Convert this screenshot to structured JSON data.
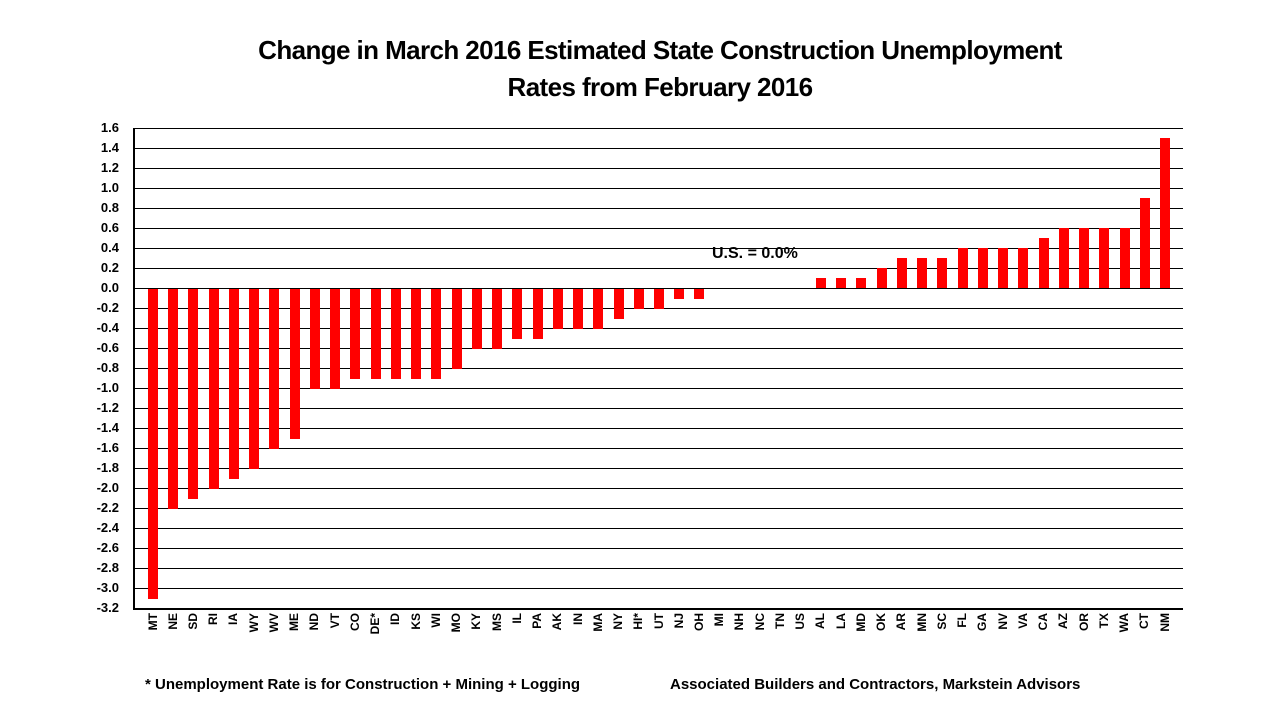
{
  "title": {
    "line1": "Change in March 2016 Estimated State Construction Unemployment",
    "line2": "Rates from February 2016"
  },
  "annotation": {
    "text": "U.S. = 0.0%"
  },
  "footer": {
    "left": "* Unemployment Rate is for Construction + Mining + Logging",
    "right": "Associated Builders and Contractors, Markstein Advisors"
  },
  "colors": {
    "bar": "#FF0000",
    "grid": "#000000",
    "text": "#000000",
    "background": "#FFFFFF"
  },
  "chart_data": {
    "type": "bar",
    "title": "Change in March 2016 Estimated State Construction Unemployment Rates from February 2016",
    "xlabel": "",
    "ylabel": "",
    "ylim": [
      -3.2,
      1.6
    ],
    "ytick_step": 0.2,
    "grid": true,
    "legend": "none",
    "bar_color": "#FF0000",
    "yticks": [
      "1.6",
      "1.4",
      "1.2",
      "1.0",
      "0.8",
      "0.6",
      "0.4",
      "0.2",
      "0.0",
      "-0.2",
      "-0.4",
      "-0.6",
      "-0.8",
      "-1.0",
      "-1.2",
      "-1.4",
      "-1.6",
      "-1.8",
      "-2.0",
      "-2.2",
      "-2.4",
      "-2.6",
      "-2.8",
      "-3.0",
      "-3.2"
    ],
    "categories": [
      "MT",
      "NE",
      "SD",
      "RI",
      "IA",
      "WY",
      "WV",
      "ME",
      "ND",
      "VT",
      "CO",
      "DE*",
      "ID",
      "KS",
      "WI",
      "MO",
      "KY",
      "MS",
      "IL",
      "PA",
      "AK",
      "IN",
      "MA",
      "NY",
      "HI*",
      "UT",
      "NJ",
      "OH",
      "MI",
      "NH",
      "NC",
      "TN",
      "US",
      "AL",
      "LA",
      "MD",
      "OK",
      "AR",
      "MN",
      "SC",
      "FL",
      "GA",
      "NV",
      "VA",
      "CA",
      "AZ",
      "OR",
      "TX",
      "WA",
      "CT",
      "NM"
    ],
    "values": [
      -3.1,
      -2.2,
      -2.1,
      -2.0,
      -1.9,
      -1.8,
      -1.6,
      -1.5,
      -1.0,
      -1.0,
      -0.9,
      -0.9,
      -0.9,
      -0.9,
      -0.9,
      -0.8,
      -0.6,
      -0.6,
      -0.5,
      -0.5,
      -0.4,
      -0.4,
      -0.4,
      -0.3,
      -0.2,
      -0.2,
      -0.1,
      -0.1,
      0.0,
      0.0,
      0.0,
      0.0,
      0.0,
      0.1,
      0.1,
      0.1,
      0.2,
      0.3,
      0.3,
      0.3,
      0.4,
      0.4,
      0.4,
      0.4,
      0.5,
      0.6,
      0.6,
      0.6,
      0.6,
      0.9,
      1.5
    ],
    "annotations": [
      {
        "text": "U.S. = 0.0%",
        "near_category": "US"
      }
    ]
  }
}
